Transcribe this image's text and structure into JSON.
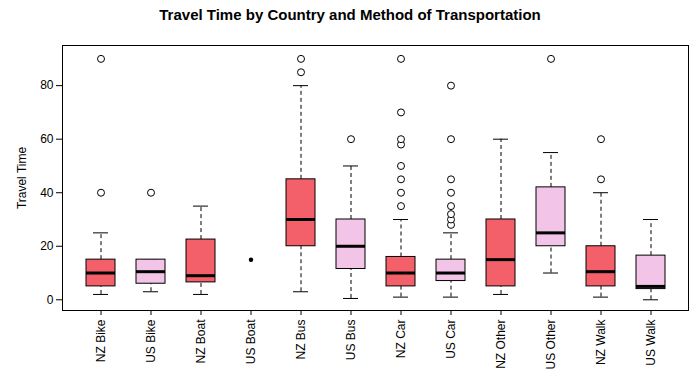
{
  "chart_data": {
    "type": "box",
    "title": "Travel Time by Country and Method of Transportation",
    "y_label": "Travel Time",
    "categories": [
      "NZ Bike",
      "US Bike",
      "NZ Boat",
      "US Boat",
      "NZ Bus",
      "US Bus",
      "NZ Car",
      "US Car",
      "NZ Other",
      "US Other",
      "NZ Walk",
      "US Walk"
    ],
    "colors": [
      "#f4606a",
      "#f2c4e8",
      "#f4606a",
      "#f2c4e8",
      "#f4606a",
      "#f2c4e8",
      "#f4606a",
      "#f2c4e8",
      "#f4606a",
      "#f2c4e8",
      "#f4606a",
      "#f2c4e8"
    ],
    "whisker_low": [
      2,
      3,
      2,
      15,
      3,
      0.5,
      1,
      1,
      2,
      10,
      1,
      0
    ],
    "q1": [
      5,
      6,
      6.5,
      15,
      20,
      11.5,
      5,
      7,
      5,
      20,
      5,
      4
    ],
    "median": [
      10,
      10.5,
      9,
      15,
      30,
      20,
      10,
      10,
      15,
      25,
      10.5,
      5
    ],
    "q3": [
      15,
      15,
      22.5,
      15,
      45,
      30,
      16,
      15,
      30,
      42,
      20,
      16.5
    ],
    "whisker_high": [
      25,
      15,
      35,
      15,
      80,
      50,
      30,
      25,
      60,
      55,
      40,
      30
    ],
    "outliers": [
      [
        40,
        90
      ],
      [
        40
      ],
      [],
      [],
      [
        85,
        90
      ],
      [
        60
      ],
      [
        35,
        40,
        45,
        50,
        58,
        60,
        70,
        90
      ],
      [
        28,
        30,
        32,
        35,
        40,
        45,
        60,
        80
      ],
      [],
      [
        90
      ],
      [
        45,
        60
      ],
      []
    ],
    "ylim": [
      -4,
      95
    ],
    "yticks": [
      0,
      20,
      40,
      60,
      80
    ]
  }
}
